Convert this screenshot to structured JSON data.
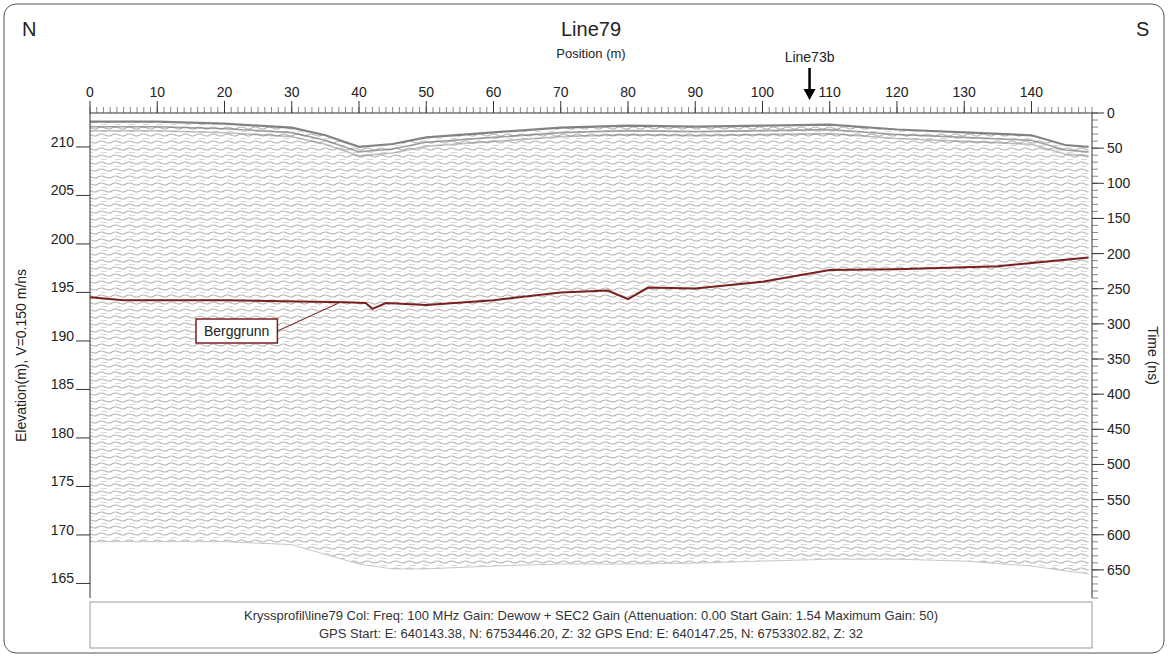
{
  "chart_data": {
    "type": "line",
    "title": "Line79",
    "x_label": "Position (m)",
    "y_label": "Elevation(m), V=0.150 m/ns",
    "y2_label": "Time (ns)",
    "left_corner": "N",
    "right_corner": "S",
    "annotations": [
      {
        "text": "Line73b",
        "x": 107
      },
      {
        "text": "Berggrunn",
        "x": 37
      }
    ],
    "footer": [
      "Kryssprofil\\line79  Col:  Freq: 100 MHz  Gain: Dewow + SEC2 Gain (Attenuation: 0.00  Start Gain: 1.54  Maximum Gain: 50)",
      "GPS Start: E: 640143.38, N: 6753446.20, Z: 32  GPS End: E: 640147.25, N: 6753302.82, Z: 32"
    ],
    "xlim": [
      0,
      149
    ],
    "xticks": [
      0,
      10,
      20,
      30,
      40,
      50,
      60,
      70,
      80,
      90,
      100,
      110,
      120,
      130,
      140
    ],
    "ylim": [
      163.5,
      213.5
    ],
    "yticks": [
      165,
      170,
      175,
      180,
      185,
      190,
      195,
      200,
      205,
      210
    ],
    "y2lim": [
      690,
      0
    ],
    "y2ticks": [
      0,
      50,
      100,
      150,
      200,
      250,
      300,
      350,
      400,
      450,
      500,
      550,
      600,
      650
    ],
    "series": [
      {
        "name": "Berggrunn",
        "color": "#7a1f1f",
        "line_style": "solid",
        "x": [
          0,
          5,
          20,
          38,
          41,
          42,
          44,
          50,
          60,
          70,
          77,
          80,
          83,
          90,
          100,
          110,
          120,
          135,
          148.5
        ],
        "values": [
          194.5,
          194.2,
          194.2,
          194.0,
          193.9,
          193.3,
          193.9,
          193.7,
          194.2,
          195.0,
          195.2,
          194.3,
          195.5,
          195.4,
          196.1,
          197.3,
          197.4,
          197.7,
          198.6
        ]
      },
      {
        "color": "#6e6e6e",
        "line_style": "solid",
        "x": [
          0,
          10,
          20,
          30,
          35,
          40,
          45,
          50,
          60,
          70,
          80,
          90,
          100,
          110,
          120,
          130,
          140,
          145,
          148.5
        ],
        "values": [
          212.6,
          212.6,
          212.4,
          212.0,
          211.2,
          210.0,
          210.3,
          211.0,
          211.5,
          212.0,
          212.2,
          212.1,
          212.2,
          212.3,
          211.8,
          211.5,
          211.2,
          210.2,
          210.0
        ]
      },
      {
        "color": "#c8c8c8",
        "line_style": "solid",
        "x": [
          0,
          10,
          20,
          30,
          35,
          40,
          45,
          50,
          60,
          70,
          80,
          90,
          100,
          110,
          120,
          130,
          140,
          145,
          148.5
        ],
        "values": [
          169.3,
          169.3,
          169.3,
          169.0,
          168.0,
          167.0,
          166.5,
          166.5,
          166.8,
          167.0,
          167.0,
          167.1,
          167.3,
          167.5,
          167.5,
          167.3,
          166.8,
          166.3,
          166.0
        ]
      }
    ]
  }
}
